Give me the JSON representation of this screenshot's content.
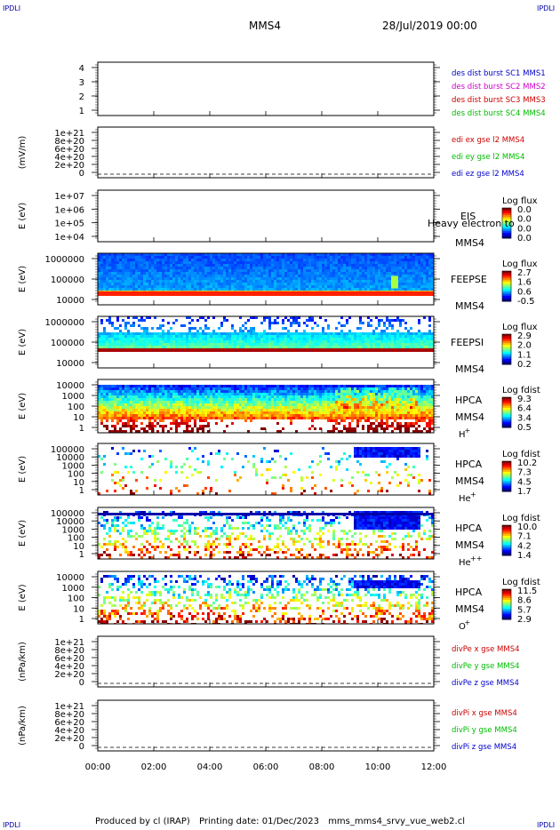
{
  "corner_labels": {
    "tl": "IPDLI",
    "tr": "IPDLI",
    "bl": "IPDLI",
    "br": "IPDLI"
  },
  "header": {
    "spacecraft": "MMS4",
    "date": "28/Jul/2019 00:00"
  },
  "footer": {
    "produced_by": "Produced by cl (IRAP)",
    "printing_date": "Printing date: 01/Dec/2023",
    "filename": "mms_mms4_srvy_vue_web2.cl"
  },
  "x_axis": {
    "ticks": [
      "00:00",
      "02:00",
      "04:00",
      "06:00",
      "08:00",
      "10:00",
      "12:00"
    ]
  },
  "chart_data": [
    {
      "type": "line",
      "id": "burst",
      "ylabel": "",
      "ytick_labels": [
        "4",
        "3",
        "2",
        "1"
      ],
      "legend": [
        {
          "text": "des dist burst SC1 MMS1",
          "color": "#0000cc"
        },
        {
          "text": "des dist burst SC2 MMS2",
          "color": "#cc00cc"
        },
        {
          "text": "des dist burst SC3 MMS3",
          "color": "#cc0000"
        },
        {
          "text": "des dist burst SC4 MMS4",
          "color": "#00bb00"
        }
      ]
    },
    {
      "type": "line",
      "id": "edi",
      "ylabel": "(mV/m)",
      "ytick_labels": [
        "1e+21",
        "8e+20",
        "6e+20",
        "4e+20",
        "2e+20",
        "0"
      ],
      "legend": [
        {
          "text": "edi ex gse l2 MMS4",
          "color": "#cc0000"
        },
        {
          "text": "edi ey gse l2 MMS4",
          "color": "#00bb00"
        },
        {
          "text": "edi ez gse l2 MMS4",
          "color": "#0000cc"
        }
      ]
    },
    {
      "type": "heatmap",
      "id": "eis",
      "ylabel": "E (eV)",
      "ytick_labels": [
        "1e+07",
        "1e+06",
        "1e+05",
        "1e+04"
      ],
      "instrument": "EIS",
      "probe": "MMS4",
      "overlay_text": "Heavy electron to",
      "colorbar": {
        "title": "Log flux",
        "ticks": [
          "0.0",
          "0.0",
          "0.0",
          "0.0"
        ]
      }
    },
    {
      "type": "heatmap",
      "id": "feepse",
      "ylabel": "E (eV)",
      "ytick_labels": [
        "1000000",
        "100000",
        "10000"
      ],
      "instrument": "FEEPSE",
      "probe": "MMS4",
      "colorbar": {
        "title": "Log flux",
        "ticks": [
          "2.7",
          "1.6",
          "0.6",
          "-0.5"
        ]
      }
    },
    {
      "type": "heatmap",
      "id": "feepsi",
      "ylabel": "E (eV)",
      "ytick_labels": [
        "1000000",
        "100000",
        "10000"
      ],
      "instrument": "FEEPSI",
      "probe": "MMS4",
      "colorbar": {
        "title": "Log flux",
        "ticks": [
          "2.9",
          "2.0",
          "1.1",
          "0.2"
        ]
      }
    },
    {
      "type": "heatmap",
      "id": "hpca_h",
      "ylabel": "E (eV)",
      "ytick_labels": [
        "10000",
        "1000",
        "100",
        "10",
        "1"
      ],
      "instrument": "HPCA",
      "probe": "MMS4",
      "species": "H",
      "charge": "+",
      "colorbar": {
        "title": "Log fdist",
        "ticks": [
          "9.3",
          "6.4",
          "3.4",
          "0.5"
        ]
      }
    },
    {
      "type": "heatmap",
      "id": "hpca_he",
      "ylabel": "E (eV)",
      "ytick_labels": [
        "100000",
        "10000",
        "1000",
        "100",
        "10",
        "1"
      ],
      "instrument": "HPCA",
      "probe": "MMS4",
      "species": "He",
      "charge": "+",
      "colorbar": {
        "title": "Log fdist",
        "ticks": [
          "10.2",
          "7.3",
          "4.5",
          "1.7"
        ]
      }
    },
    {
      "type": "heatmap",
      "id": "hpca_hepp",
      "ylabel": "E (eV)",
      "ytick_labels": [
        "100000",
        "10000",
        "1000",
        "100",
        "10",
        "1"
      ],
      "instrument": "HPCA",
      "probe": "MMS4",
      "species": "He",
      "charge": "++",
      "colorbar": {
        "title": "Log fdist",
        "ticks": [
          "10.0",
          "7.1",
          "4.2",
          "1.4"
        ]
      }
    },
    {
      "type": "heatmap",
      "id": "hpca_o",
      "ylabel": "E (eV)",
      "ytick_labels": [
        "10000",
        "1000",
        "100",
        "10",
        "1"
      ],
      "instrument": "HPCA",
      "probe": "MMS4",
      "species": "O",
      "charge": "+",
      "colorbar": {
        "title": "Log fdist",
        "ticks": [
          "11.5",
          "8.6",
          "5.7",
          "2.9"
        ]
      }
    },
    {
      "type": "line",
      "id": "divpe",
      "ylabel": "(nPa/km)",
      "ytick_labels": [
        "1e+21",
        "8e+20",
        "6e+20",
        "4e+20",
        "2e+20",
        "0"
      ],
      "legend": [
        {
          "text": "divPe x gse MMS4",
          "color": "#cc0000"
        },
        {
          "text": "divPe y gse MMS4",
          "color": "#00bb00"
        },
        {
          "text": "divPe z gse MMS4",
          "color": "#0000cc"
        }
      ]
    },
    {
      "type": "line",
      "id": "divpi",
      "ylabel": "(nPa/km)",
      "ytick_labels": [
        "1e+21",
        "8e+20",
        "6e+20",
        "4e+20",
        "2e+20",
        "0"
      ],
      "legend": [
        {
          "text": "divPi x gse MMS4",
          "color": "#cc0000"
        },
        {
          "text": "divPi y gse MMS4",
          "color": "#00bb00"
        },
        {
          "text": "divPi z gse MMS4",
          "color": "#0000cc"
        }
      ]
    }
  ]
}
